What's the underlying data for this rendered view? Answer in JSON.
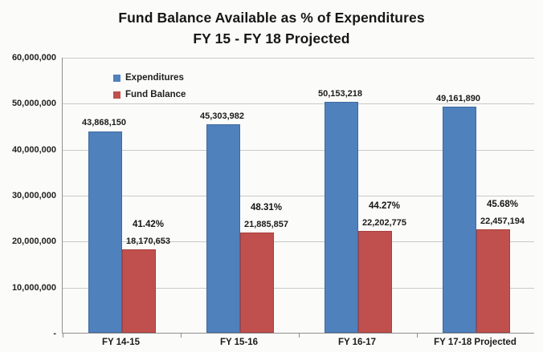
{
  "title": {
    "line1": "Fund Balance Available as % of Expenditures",
    "line2": "FY 15 - FY 18 Projected"
  },
  "legend": [
    {
      "label": "Expenditures",
      "color": "#4f81bd"
    },
    {
      "label": "Fund Balance",
      "color": "#c0504d"
    }
  ],
  "colors": {
    "expenditures_bar": "#4f81bd",
    "fund_balance_bar": "#c0504d",
    "gridline": "#c9c9c9",
    "axis": "#8f8f8f"
  },
  "chart_data": {
    "type": "bar",
    "title": "Fund Balance Available as % of Expenditures FY 15 - FY 18 Projected",
    "categories": [
      "FY 14-15",
      "FY 15-16",
      "FY 16-17",
      "FY 17-18 Projected"
    ],
    "series": [
      {
        "name": "Expenditures",
        "color": "#4f81bd",
        "values": [
          43868150,
          45303982,
          50153218,
          49161890
        ],
        "labels": [
          "43,868,150",
          "45,303,982",
          "50,153,218",
          "49,161,890"
        ]
      },
      {
        "name": "Fund Balance",
        "color": "#c0504d",
        "values": [
          18170653,
          21885857,
          22202775,
          22457194
        ],
        "labels": [
          "18,170,653",
          "21,885,857",
          "22,202,775",
          "22,457,194"
        ]
      }
    ],
    "percent_labels": [
      "41.42%",
      "48.31%",
      "44.27%",
      "45.68%"
    ],
    "xlabel": "",
    "ylabel": "",
    "ylim": [
      0,
      60000000
    ],
    "ytick_step": 10000000,
    "ytick_labels_top_to_bottom": [
      "60,000,000",
      "50,000,000",
      "40,000,000",
      "30,000,000",
      "20,000,000",
      "10,000,000",
      "-"
    ],
    "grid": true,
    "legend_position": "inside-top-left"
  }
}
